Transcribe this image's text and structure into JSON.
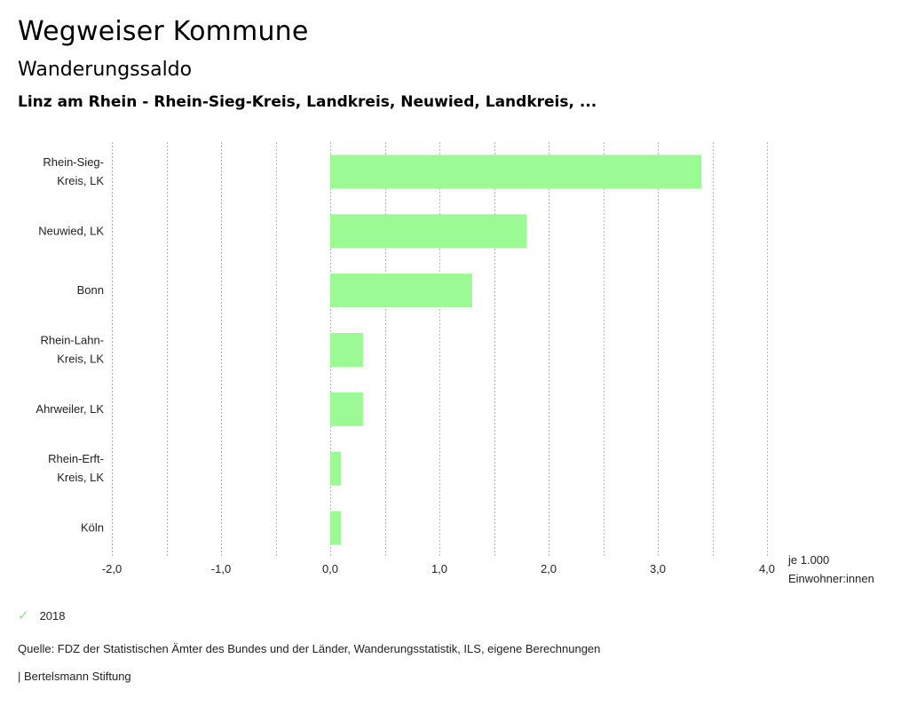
{
  "header": {
    "title": "Wegweiser Kommune",
    "subtitle": "Wanderungssaldo",
    "location": "Linz am Rhein - Rhein-Sieg-Kreis, Landkreis, Neuwied, Landkreis, ..."
  },
  "chart_data": {
    "type": "bar",
    "orientation": "horizontal",
    "title": "Wanderungssaldo",
    "xlabel": "je 1.000 Einwohner:innen",
    "xlabel_lines": [
      "je 1.000",
      "Einwohner:innen"
    ],
    "ylabel": "",
    "xlim": [
      -2.0,
      4.0
    ],
    "grid": true,
    "categories": [
      [
        "Rhein-Sieg-",
        "Kreis, LK"
      ],
      [
        "Neuwied, LK"
      ],
      [
        "Bonn"
      ],
      [
        "Rhein-Lahn-",
        "Kreis, LK"
      ],
      [
        "Ahrweiler, LK"
      ],
      [
        "Rhein-Erft-",
        "Kreis, LK"
      ],
      [
        "Köln"
      ]
    ],
    "series": [
      {
        "name": "2018",
        "color": "#9cfa94",
        "values": [
          3.4,
          1.8,
          1.3,
          0.3,
          0.3,
          0.1,
          0.1
        ]
      }
    ],
    "x_ticks": [
      -2.0,
      -1.0,
      0.0,
      1.0,
      2.0,
      3.0,
      4.0
    ],
    "x_tick_labels": [
      "-2,0",
      "-1,0",
      "0,0",
      "1,0",
      "2,0",
      "3,0",
      "4,0"
    ],
    "x_grid": [
      -2.0,
      -1.5,
      -1.0,
      -0.5,
      0.0,
      0.5,
      1.0,
      1.5,
      2.0,
      2.5,
      3.0,
      3.5,
      4.0
    ],
    "legend_position": "bottom-left"
  },
  "legend": {
    "items": [
      {
        "label": "2018",
        "icon": "check-icon",
        "color": "#9cfa94"
      }
    ]
  },
  "footer": {
    "source": "Quelle: FDZ der Statistischen Ämter des Bundes und der Länder, Wanderungsstatistik, ILS, eigene Berechnungen",
    "brand": "| Bertelsmann Stiftung"
  }
}
